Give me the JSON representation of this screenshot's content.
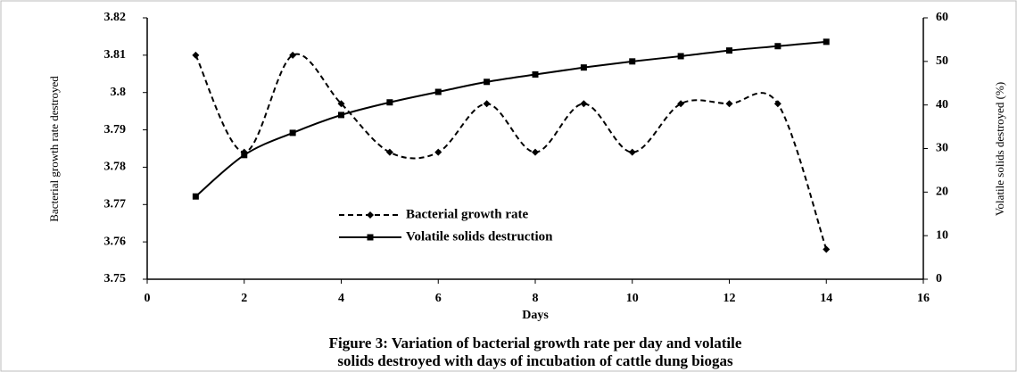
{
  "chart_data": {
    "type": "line",
    "title": [
      "Figure 3: Variation of bacterial growth rate per day and volatile",
      "solids destroyed with days of incubation of cattle dung biogas"
    ],
    "x_label": "Days",
    "y_label": "Bacterial growth rate destroyed",
    "y2_label": "Volatile solids destroyed (%)",
    "x": [
      1,
      2,
      3,
      4,
      5,
      6,
      7,
      8,
      9,
      10,
      11,
      12,
      13,
      14
    ],
    "series": [
      {
        "name": "Bacterial growth rate",
        "color": "#000000",
        "dash": true,
        "marker": "diamond",
        "values": [
          3.81,
          3.784,
          3.81,
          3.797,
          3.784,
          3.784,
          3.797,
          3.784,
          3.797,
          3.784,
          3.797,
          3.797,
          3.797,
          3.758
        ]
      },
      {
        "name": "Volatile solids destruction",
        "color": "#000000",
        "dash": false,
        "marker": "square",
        "axis": "y2",
        "values": [
          19,
          28.5,
          33.6,
          37.7,
          40.6,
          43,
          45.3,
          47,
          48.6,
          50,
          51.2,
          52.5,
          53.5,
          54.5
        ]
      }
    ],
    "xlim": [
      0,
      16
    ],
    "xticks": [
      0,
      2,
      4,
      6,
      8,
      10,
      12,
      14,
      16
    ],
    "ylim": [
      3.75,
      3.82
    ],
    "yticks": [
      3.75,
      3.76,
      3.77,
      3.78,
      3.79,
      3.8,
      3.81,
      3.82
    ],
    "y2lim": [
      0,
      60
    ],
    "y2ticks": [
      0,
      10,
      20,
      30,
      40,
      50,
      60
    ]
  }
}
